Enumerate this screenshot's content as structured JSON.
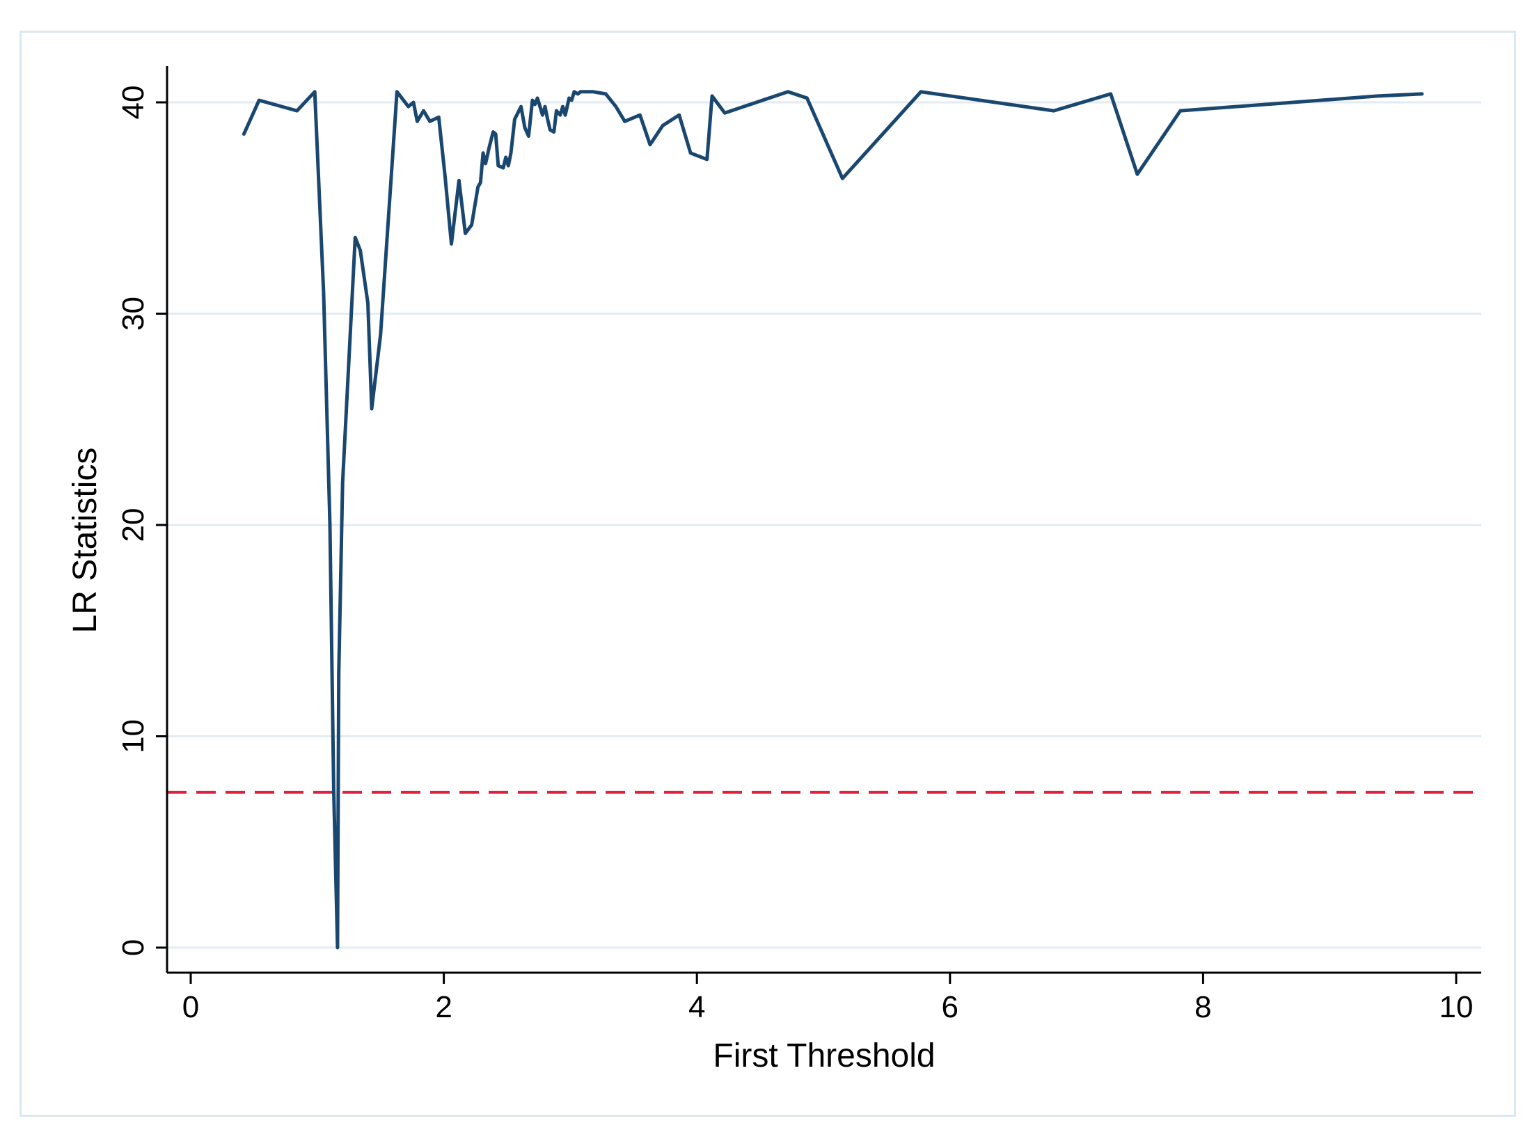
{
  "chart_data": {
    "type": "line",
    "title": "",
    "xlabel": "First Threshold",
    "ylabel": "LR Statistics",
    "xlim": [
      0,
      10
    ],
    "ylim": [
      0,
      40
    ],
    "x_ticks": [
      0,
      2,
      4,
      6,
      8,
      10
    ],
    "y_ticks": [
      0,
      10,
      20,
      30,
      40
    ],
    "grid": true,
    "series": [
      {
        "color": "#1a476f",
        "x": [
          0.42,
          0.54,
          0.84,
          0.98,
          1.05,
          1.1,
          1.13,
          1.16,
          1.17,
          1.2,
          1.3,
          1.34,
          1.4,
          1.43,
          1.5,
          1.63,
          1.72,
          1.76,
          1.79,
          1.84,
          1.89,
          1.96,
          2.01,
          2.06,
          2.12,
          2.17,
          2.22,
          2.27,
          2.29,
          2.31,
          2.33,
          2.36,
          2.39,
          2.41,
          2.43,
          2.47,
          2.49,
          2.51,
          2.53,
          2.56,
          2.61,
          2.64,
          2.67,
          2.7,
          2.72,
          2.74,
          2.78,
          2.8,
          2.82,
          2.84,
          2.87,
          2.89,
          2.92,
          2.94,
          2.96,
          2.99,
          3.01,
          3.03,
          3.06,
          3.08,
          3.18,
          3.28,
          3.36,
          3.43,
          3.55,
          3.63,
          3.73,
          3.86,
          3.95,
          4.08,
          4.12,
          4.22,
          4.72,
          4.87,
          5.15,
          5.77,
          6.82,
          7.27,
          7.48,
          7.82,
          9.38,
          9.73
        ],
        "y": [
          38.5,
          40.1,
          39.6,
          40.5,
          31.0,
          20.0,
          7.5,
          0.0,
          13.0,
          22.0,
          33.6,
          33.0,
          30.5,
          25.5,
          29.0,
          40.5,
          39.8,
          40.0,
          39.1,
          39.6,
          39.1,
          39.3,
          36.5,
          33.3,
          36.3,
          33.8,
          34.2,
          36.0,
          36.2,
          37.6,
          37.1,
          37.9,
          38.6,
          38.5,
          37.0,
          36.9,
          37.4,
          37.0,
          37.6,
          39.2,
          39.8,
          38.8,
          38.4,
          40.1,
          39.9,
          40.2,
          39.4,
          39.8,
          39.2,
          38.7,
          38.6,
          39.6,
          39.4,
          39.8,
          39.4,
          40.2,
          40.1,
          40.5,
          40.4,
          40.5,
          40.5,
          40.4,
          39.8,
          39.1,
          39.4,
          38.0,
          38.9,
          39.4,
          37.6,
          37.3,
          40.3,
          39.5,
          40.5,
          40.2,
          36.4,
          40.5,
          39.6,
          40.4,
          36.6,
          39.6,
          40.3,
          40.4
        ]
      }
    ],
    "reference_lines": [
      {
        "orientation": "horizontal",
        "y": 7.35,
        "color": "#e3203b",
        "style": "dashed"
      }
    ]
  }
}
